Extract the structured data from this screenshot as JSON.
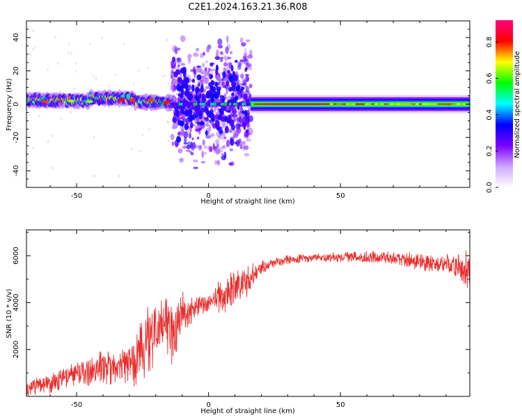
{
  "figure": {
    "title": "C2E1.2024.163.21.36.R08"
  },
  "chart_data": [
    {
      "type": "heatmap",
      "xlabel": "Height of straight line (km)",
      "ylabel": "Frequency (Hz)",
      "xlim": [
        -69,
        99
      ],
      "ylim": [
        -50,
        50
      ],
      "xticks": [
        -50,
        0,
        50
      ],
      "yticks": [
        -40,
        -20,
        0,
        20,
        40
      ],
      "grid": false,
      "colorbar": {
        "label": "Normalized spectral amplitude",
        "range": [
          0,
          0.92
        ],
        "ticks": [
          0.0,
          0.2,
          0.4,
          0.6,
          0.8
        ],
        "colormap": [
          "#ffffff",
          "#cfa6ff",
          "#7b00ff",
          "#0000ff",
          "#00ffff",
          "#00ff00",
          "#ffff00",
          "#ff0000",
          "#ff0080"
        ]
      },
      "segments": [
        {
          "x": [
            -69,
            -14
          ],
          "freq_center": 3,
          "freq_halfwidth": 5,
          "note": "noisy band, drifting upward toward -40 km"
        },
        {
          "x": [
            -14,
            16
          ],
          "freq_center": 0,
          "freq_halfwidth": 40,
          "note": "broad scatter"
        },
        {
          "x": [
            16,
            99
          ],
          "freq_center": 0,
          "freq_halfwidth": 3,
          "note": "narrow strong tone"
        }
      ]
    },
    {
      "type": "line",
      "xlabel": "Height of straight line (km)",
      "ylabel": "SNR (10 * v/v)",
      "xlim": [
        -69,
        99
      ],
      "ylim": [
        0,
        7100
      ],
      "xticks": [
        -50,
        0,
        50
      ],
      "yticks": [
        2000,
        4000,
        6000
      ],
      "grid": false,
      "series": [
        {
          "color": "#e8302f",
          "envelope": {
            "x": [
              -69,
              -60,
              -50,
              -40,
              -32,
              -26,
              -22,
              -18,
              -14,
              -11,
              -5,
              0,
              5,
              8,
              12,
              16,
              20,
              25,
              30,
              40,
              50,
              60,
              70,
              80,
              90,
              96,
              98,
              99
            ],
            "mean": [
              300,
              600,
              900,
              1200,
              1300,
              1800,
              2500,
              3000,
              2800,
              3300,
              3800,
              4000,
              4300,
              4600,
              4700,
              5000,
              5400,
              5700,
              5850,
              5900,
              5950,
              5950,
              5850,
              5750,
              5650,
              5500,
              5400,
              5300
            ],
            "amp": [
              350,
              500,
              650,
              800,
              900,
              1600,
              1700,
              1400,
              1800,
              1300,
              500,
              400,
              900,
              1100,
              900,
              700,
              400,
              300,
              250,
              200,
              250,
              300,
              350,
              400,
              450,
              600,
              900,
              700
            ]
          }
        }
      ]
    }
  ]
}
